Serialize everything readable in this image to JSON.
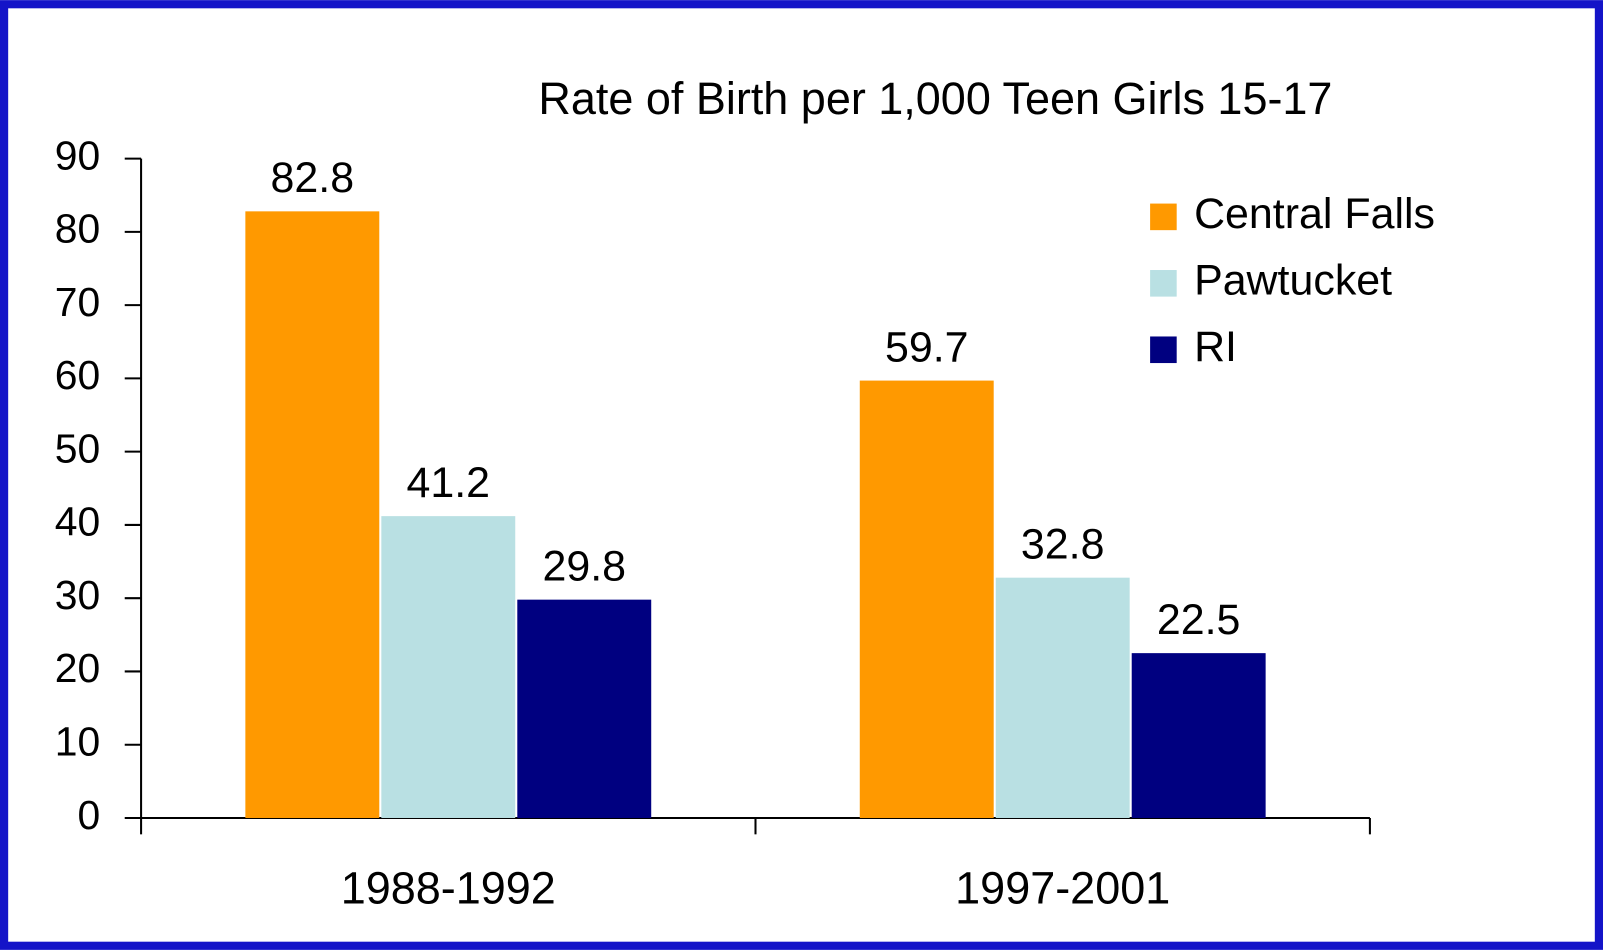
{
  "chart_data": {
    "type": "bar",
    "title": "Rate of Birth per 1,000 Teen Girls 15-17",
    "categories": [
      "1988-1992",
      "1997-2001"
    ],
    "series": [
      {
        "name": "Central Falls",
        "color": "#ff9900",
        "values": [
          82.8,
          59.7
        ]
      },
      {
        "name": "Pawtucket",
        "color": "#b9e0e3",
        "values": [
          41.2,
          32.8
        ]
      },
      {
        "name": "RI",
        "color": "#000080",
        "values": [
          29.8,
          22.5
        ]
      }
    ],
    "ylim": [
      0,
      90
    ],
    "yticks": [
      0,
      10,
      20,
      30,
      40,
      50,
      60,
      70,
      80,
      90
    ],
    "grid": false,
    "legend": "top-right"
  }
}
